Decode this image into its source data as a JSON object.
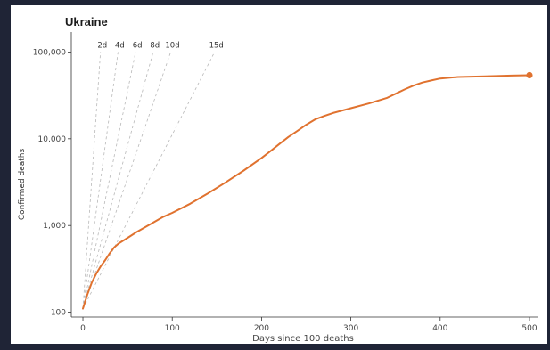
{
  "chart_data": {
    "type": "line",
    "title": "Ukraine",
    "xlabel": "Days since 100 deaths",
    "ylabel": "Confirmed deaths",
    "y_scale": "log",
    "xlim": [
      -13,
      510
    ],
    "ylim": [
      88,
      170000
    ],
    "x_ticks": [
      0,
      100,
      200,
      300,
      400,
      500
    ],
    "y_ticks": [
      100,
      1000,
      10000,
      100000
    ],
    "y_tick_labels": [
      "100",
      "1,000",
      "10,000",
      "100,000"
    ],
    "grid": false,
    "colors": {
      "series": "#e0722f",
      "reference": "#b8b8b8"
    },
    "reference_lines": [
      {
        "label": "2d",
        "doubling_days": 2
      },
      {
        "label": "4d",
        "doubling_days": 4
      },
      {
        "label": "6d",
        "doubling_days": 6
      },
      {
        "label": "8d",
        "doubling_days": 8
      },
      {
        "label": "10d",
        "doubling_days": 10
      },
      {
        "label": "15d",
        "doubling_days": 15
      }
    ],
    "series": [
      {
        "x": [
          0,
          5,
          10,
          15,
          20,
          25,
          30,
          35,
          40,
          50,
          60,
          75,
          90,
          100,
          120,
          140,
          160,
          180,
          200,
          210,
          220,
          230,
          240,
          250,
          260,
          270,
          280,
          300,
          320,
          340,
          350,
          360,
          370,
          380,
          390,
          400,
          420,
          450,
          480,
          500
        ],
        "y": [
          110,
          160,
          220,
          280,
          340,
          400,
          480,
          560,
          620,
          720,
          840,
          1030,
          1260,
          1400,
          1780,
          2350,
          3150,
          4300,
          6000,
          7200,
          8700,
          10500,
          12300,
          14500,
          16700,
          18300,
          19800,
          22500,
          25500,
          29500,
          33000,
          37000,
          41000,
          44500,
          47000,
          49500,
          51500,
          52500,
          53500,
          54000
        ]
      }
    ],
    "end_point": {
      "x": 500,
      "y": 54000
    }
  }
}
